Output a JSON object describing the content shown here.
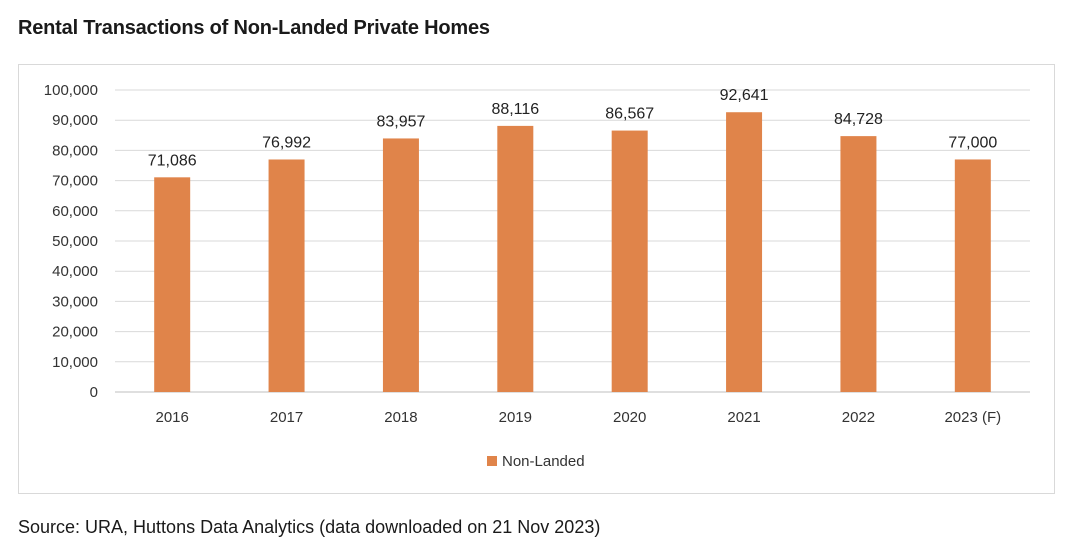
{
  "chart_data": {
    "type": "bar",
    "title": "Rental Transactions of Non-Landed Private Homes",
    "categories": [
      "2016",
      "2017",
      "2018",
      "2019",
      "2020",
      "2021",
      "2022",
      "2023 (F)"
    ],
    "series": [
      {
        "name": "Non-Landed",
        "values": [
          71086,
          76992,
          83957,
          88116,
          86567,
          92641,
          84728,
          77000
        ],
        "color": "#E0844A"
      }
    ],
    "data_labels": [
      "71,086",
      "76,992",
      "83,957",
      "88,116",
      "86,567",
      "92,641",
      "84,728",
      "77,000"
    ],
    "ylim": [
      0,
      100000
    ],
    "ytick_labels": [
      "0",
      "10,000",
      "20,000",
      "30,000",
      "40,000",
      "50,000",
      "60,000",
      "70,000",
      "80,000",
      "90,000",
      "100,000"
    ],
    "xlabel": "",
    "ylabel": "",
    "grid": true,
    "legend_position": "bottom"
  },
  "source": "Source: URA, Huttons Data Analytics (data downloaded on 21 Nov 2023)"
}
